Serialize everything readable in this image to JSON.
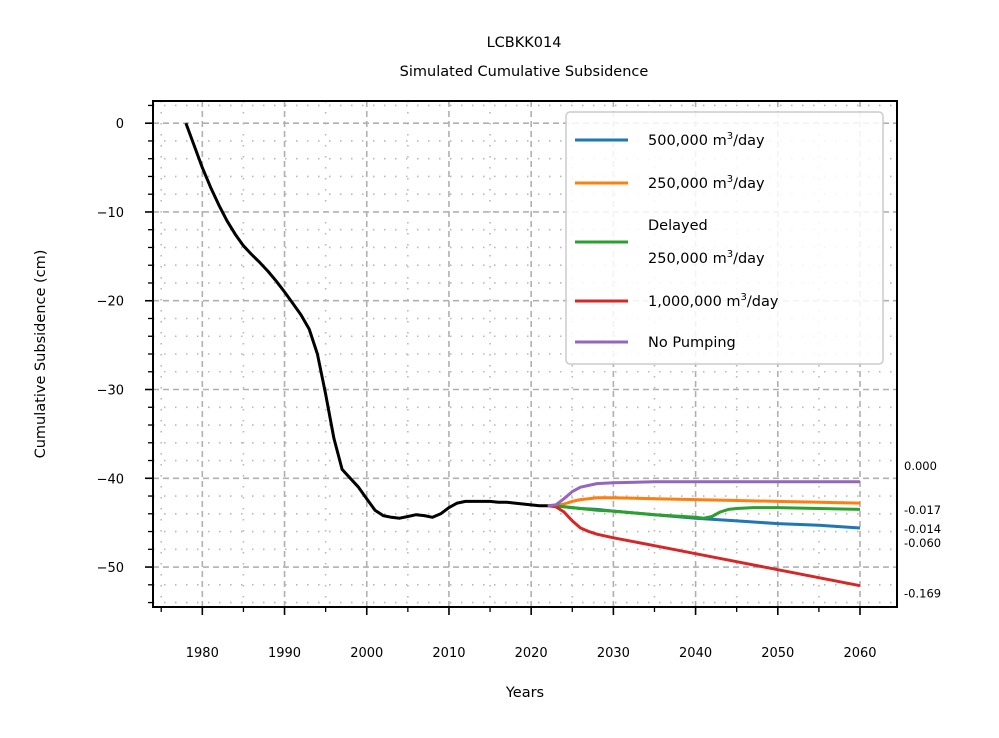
{
  "chart_data": {
    "type": "line",
    "title": "LCBKK014",
    "subtitle": "Simulated Cumulative Subsidence",
    "xlabel": "Years",
    "ylabel": "Cumulative Subsidence (cm)",
    "xlim": [
      1974,
      2064.5
    ],
    "ylim": [
      -54.5,
      2.5
    ],
    "xticks": [
      1980,
      1990,
      2000,
      2010,
      2020,
      2030,
      2040,
      2050,
      2060
    ],
    "yticks": [
      0,
      -10,
      -20,
      -30,
      -40,
      -50
    ],
    "ytick_labels": [
      "0",
      "−10",
      "−20",
      "−30",
      "−40",
      "−50"
    ],
    "y_minor_step": 2,
    "x_minor_step": 5,
    "grid": "major dashed, minor dotted",
    "legend_position": "upper right",
    "observed": {
      "color": "#000000",
      "x": [
        1978,
        1979,
        1980,
        1981,
        1982,
        1983,
        1984,
        1985,
        1986,
        1987,
        1988,
        1989,
        1990,
        1991,
        1992,
        1993,
        1994,
        1995,
        1996,
        1997,
        1998,
        1999,
        2000,
        2001,
        2002,
        2003,
        2004,
        2005,
        2006,
        2007,
        2008,
        2009,
        2010,
        2011,
        2012,
        2013,
        2014,
        2015,
        2016,
        2017,
        2018,
        2019,
        2020,
        2021,
        2022
      ],
      "y": [
        0,
        -2.5,
        -5,
        -7.2,
        -9.2,
        -11,
        -12.5,
        -13.8,
        -14.8,
        -15.7,
        -16.7,
        -17.8,
        -19,
        -20.3,
        -21.6,
        -23.2,
        -26,
        -30.5,
        -35.5,
        -39,
        -40,
        -41,
        -42.3,
        -43.6,
        -44.2,
        -44.4,
        -44.5,
        -44.3,
        -44.1,
        -44.2,
        -44.4,
        -44,
        -43.3,
        -42.8,
        -42.6,
        -42.6,
        -42.6,
        -42.6,
        -42.7,
        -42.7,
        -42.8,
        -42.9,
        -43,
        -43.1,
        -43.1
      ]
    },
    "series": [
      {
        "name": "500,000 m³/day",
        "color": "#1f77b4",
        "x": [
          2022,
          2023,
          2024,
          2025,
          2026,
          2028,
          2030,
          2035,
          2040,
          2045,
          2050,
          2055,
          2060
        ],
        "y": [
          -43.1,
          -43.1,
          -43.2,
          -43.3,
          -43.4,
          -43.5,
          -43.7,
          -44.1,
          -44.5,
          -44.8,
          -45.1,
          -45.3,
          -45.6
        ]
      },
      {
        "name": "250,000 m³/day",
        "color": "#ff7f0e",
        "x": [
          2022,
          2023,
          2024,
          2025,
          2026,
          2027,
          2028,
          2030,
          2035,
          2040,
          2045,
          2050,
          2055,
          2060
        ],
        "y": [
          -43.1,
          -43.1,
          -42.9,
          -42.6,
          -42.4,
          -42.3,
          -42.2,
          -42.2,
          -42.3,
          -42.4,
          -42.5,
          -42.6,
          -42.7,
          -42.8
        ]
      },
      {
        "name": "Delayed\n250,000 m³/day",
        "color": "#2ca02c",
        "x": [
          2022,
          2023,
          2024,
          2026,
          2028,
          2030,
          2035,
          2040,
          2041,
          2042,
          2043,
          2044,
          2045,
          2047,
          2050,
          2055,
          2060
        ],
        "y": [
          -43.1,
          -43.1,
          -43.2,
          -43.4,
          -43.6,
          -43.7,
          -44.1,
          -44.4,
          -44.5,
          -44.3,
          -43.8,
          -43.5,
          -43.4,
          -43.3,
          -43.3,
          -43.4,
          -43.5
        ]
      },
      {
        "name": "1,000,000 m³/day",
        "color": "#d62728",
        "x": [
          2022,
          2023,
          2024,
          2025,
          2026,
          2027,
          2028,
          2030,
          2035,
          2040,
          2045,
          2050,
          2055,
          2060
        ],
        "y": [
          -43.1,
          -43.2,
          -43.8,
          -44.8,
          -45.6,
          -46,
          -46.3,
          -46.7,
          -47.6,
          -48.5,
          -49.4,
          -50.3,
          -51.2,
          -52.1
        ]
      },
      {
        "name": "No Pumping",
        "color": "#9467bd",
        "x": [
          2022,
          2023,
          2024,
          2025,
          2026,
          2027,
          2028,
          2030,
          2035,
          2040,
          2045,
          2050,
          2055,
          2060
        ],
        "y": [
          -43.1,
          -43,
          -42.3,
          -41.5,
          -41,
          -40.8,
          -40.6,
          -40.5,
          -40.4,
          -40.4,
          -40.4,
          -40.4,
          -40.4,
          -40.4
        ]
      }
    ],
    "end_annotations": [
      {
        "text": "0.000",
        "y": -38.6
      },
      {
        "text": "-0.017",
        "y": -43.6
      },
      {
        "text": "-0.014",
        "y": -45.7
      },
      {
        "text": "-0.060",
        "y": -47.3
      },
      {
        "text": "-0.169",
        "y": -53.0
      }
    ]
  }
}
